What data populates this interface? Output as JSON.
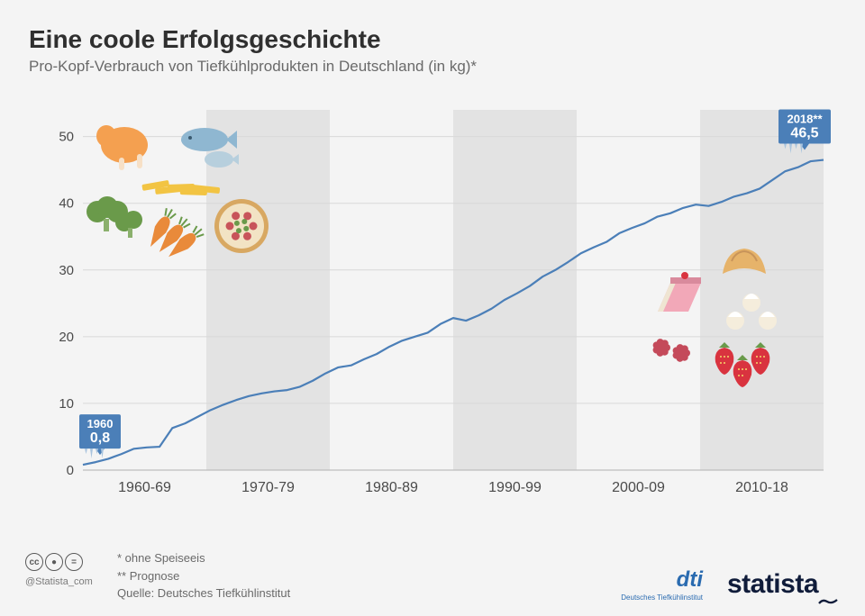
{
  "title": "Eine coole Erfolgsgeschichte",
  "subtitle": "Pro-Kopf-Verbrauch von Tiefkühlprodukten in Deutschland (in kg)*",
  "chart": {
    "type": "line",
    "background_color": "#f4f4f4",
    "grid_color": "#d8d8d8",
    "axis_color": "#bdbdbd",
    "line_color": "#4b7fb8",
    "line_width": 2.2,
    "band_color": "#e3e3e3",
    "ylim": [
      0,
      54
    ],
    "yticks": [
      0,
      10,
      20,
      30,
      40,
      50
    ],
    "xlabels": [
      "1960-69",
      "1970-79",
      "1980-89",
      "1990-99",
      "2000-09",
      "2010-18"
    ],
    "series": [
      {
        "x": 0,
        "y": 0.8
      },
      {
        "x": 1,
        "y": 1.2
      },
      {
        "x": 2,
        "y": 1.7
      },
      {
        "x": 3,
        "y": 2.4
      },
      {
        "x": 4,
        "y": 3.2
      },
      {
        "x": 5,
        "y": 3.4
      },
      {
        "x": 6,
        "y": 3.5
      },
      {
        "x": 7,
        "y": 6.3
      },
      {
        "x": 8,
        "y": 7.0
      },
      {
        "x": 9,
        "y": 8.0
      },
      {
        "x": 10,
        "y": 9.0
      },
      {
        "x": 11,
        "y": 9.8
      },
      {
        "x": 12,
        "y": 10.5
      },
      {
        "x": 13,
        "y": 11.1
      },
      {
        "x": 14,
        "y": 11.5
      },
      {
        "x": 15,
        "y": 11.8
      },
      {
        "x": 16,
        "y": 12.0
      },
      {
        "x": 17,
        "y": 12.5
      },
      {
        "x": 18,
        "y": 13.4
      },
      {
        "x": 19,
        "y": 14.5
      },
      {
        "x": 20,
        "y": 15.4
      },
      {
        "x": 21,
        "y": 15.7
      },
      {
        "x": 22,
        "y": 16.6
      },
      {
        "x": 23,
        "y": 17.4
      },
      {
        "x": 24,
        "y": 18.5
      },
      {
        "x": 25,
        "y": 19.4
      },
      {
        "x": 26,
        "y": 20.0
      },
      {
        "x": 27,
        "y": 20.6
      },
      {
        "x": 28,
        "y": 21.9
      },
      {
        "x": 29,
        "y": 22.8
      },
      {
        "x": 30,
        "y": 22.4
      },
      {
        "x": 31,
        "y": 23.2
      },
      {
        "x": 32,
        "y": 24.2
      },
      {
        "x": 33,
        "y": 25.5
      },
      {
        "x": 34,
        "y": 26.5
      },
      {
        "x": 35,
        "y": 27.6
      },
      {
        "x": 36,
        "y": 29.0
      },
      {
        "x": 37,
        "y": 30.0
      },
      {
        "x": 38,
        "y": 31.2
      },
      {
        "x": 39,
        "y": 32.5
      },
      {
        "x": 40,
        "y": 33.4
      },
      {
        "x": 41,
        "y": 34.2
      },
      {
        "x": 42,
        "y": 35.5
      },
      {
        "x": 43,
        "y": 36.3
      },
      {
        "x": 44,
        "y": 37.0
      },
      {
        "x": 45,
        "y": 38.0
      },
      {
        "x": 46,
        "y": 38.5
      },
      {
        "x": 47,
        "y": 39.3
      },
      {
        "x": 48,
        "y": 39.8
      },
      {
        "x": 49,
        "y": 39.6
      },
      {
        "x": 50,
        "y": 40.2
      },
      {
        "x": 51,
        "y": 41.0
      },
      {
        "x": 52,
        "y": 41.5
      },
      {
        "x": 53,
        "y": 42.2
      },
      {
        "x": 54,
        "y": 43.5
      },
      {
        "x": 55,
        "y": 44.8
      },
      {
        "x": 56,
        "y": 45.4
      },
      {
        "x": 57,
        "y": 46.3
      },
      {
        "x": 58,
        "y": 46.5
      }
    ],
    "callouts": [
      {
        "x": 0,
        "year": "1960",
        "value": "0,8"
      },
      {
        "x": 58,
        "year": "2018**",
        "value": "46,5"
      }
    ]
  },
  "footnotes": {
    "n1": "*   ohne Speiseeis",
    "n2": "** Prognose",
    "source": "Quelle: Deutsches Tiefkühlinstitut"
  },
  "handle": "@Statista_com",
  "dti": {
    "main": "dti",
    "sub": "Deutsches Tiefkühlinstitut"
  },
  "statista": "statista",
  "icons": {
    "left_group": [
      {
        "name": "chicken",
        "color": "#f4a050"
      },
      {
        "name": "fish",
        "color": "#8fb7d1"
      },
      {
        "name": "broccoli",
        "color": "#6a9a4a"
      },
      {
        "name": "fries",
        "color": "#f2c443"
      },
      {
        "name": "carrots",
        "color": "#e98a3a"
      },
      {
        "name": "pizza",
        "color": "#f2e3c4"
      }
    ],
    "right_group": [
      {
        "name": "croissant",
        "color": "#e6b36a"
      },
      {
        "name": "cake",
        "color": "#f2a8b8"
      },
      {
        "name": "creampuffs",
        "color": "#f5eddc"
      },
      {
        "name": "raspberries",
        "color": "#c44a5a"
      },
      {
        "name": "strawberries",
        "color": "#d9333f"
      }
    ]
  },
  "colors": {
    "title": "#2f2f2f",
    "subtitle": "#6a6a6a",
    "callout_bg": "#4b7fb8",
    "callout_text": "#ffffff"
  }
}
